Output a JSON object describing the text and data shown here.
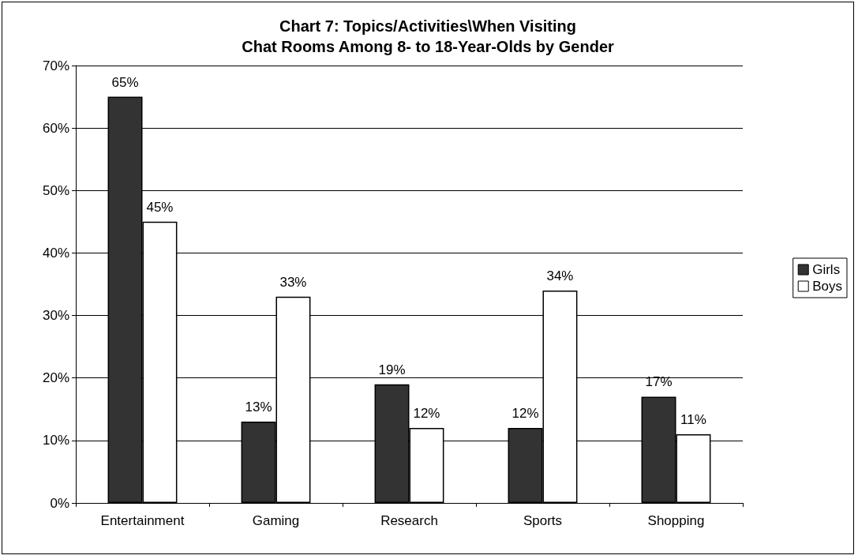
{
  "chart_data": {
    "type": "bar",
    "title": "Chart 7: Topics/Activities\\When Visiting\nChat Rooms Among 8- to 18-Year-Olds by Gender",
    "categories": [
      "Entertainment",
      "Gaming",
      "Research",
      "Sports",
      "Shopping"
    ],
    "series": [
      {
        "name": "Girls",
        "color": "#333333",
        "values": [
          65,
          13,
          19,
          12,
          17
        ],
        "value_labels": [
          "65%",
          "13%",
          "19%",
          "12%",
          "17%"
        ]
      },
      {
        "name": "Boys",
        "color": "#ffffff",
        "values": [
          45,
          33,
          12,
          34,
          11
        ],
        "value_labels": [
          "45%",
          "33%",
          "12%",
          "34%",
          "11%"
        ]
      }
    ],
    "ylim": [
      0,
      70
    ],
    "yticks": [
      {
        "value": 0,
        "label": "0%"
      },
      {
        "value": 10,
        "label": "10%"
      },
      {
        "value": 20,
        "label": "20%"
      },
      {
        "value": 30,
        "label": "30%"
      },
      {
        "value": 40,
        "label": "40%"
      },
      {
        "value": 50,
        "label": "50%"
      },
      {
        "value": 60,
        "label": "60%"
      },
      {
        "value": 70,
        "label": "70%"
      }
    ],
    "grid": "y",
    "legend": "right"
  }
}
